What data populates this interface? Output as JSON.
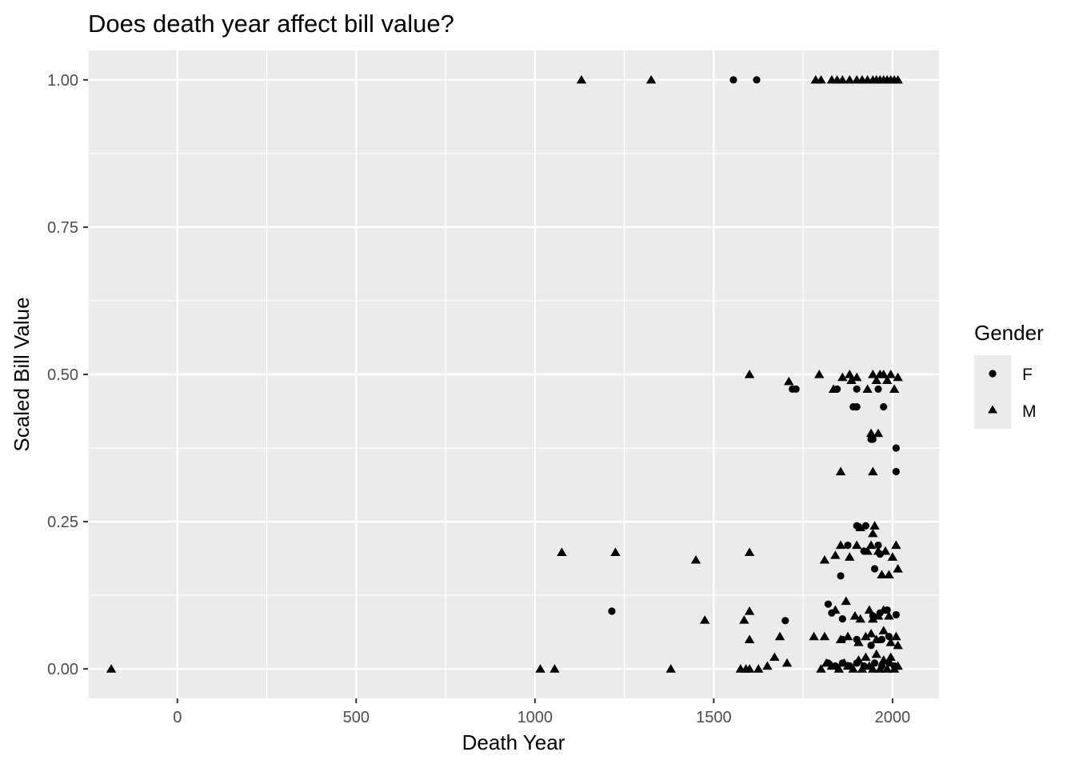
{
  "chart_data": {
    "type": "scatter",
    "title": "Does death year affect bill value?",
    "xlabel": "Death Year",
    "ylabel": "Scaled Bill Value",
    "xlim": [
      -250,
      2130
    ],
    "ylim": [
      -0.05,
      1.05
    ],
    "x_ticks": [
      0,
      500,
      1000,
      1500,
      2000
    ],
    "x_tick_labels": [
      "0",
      "500",
      "1000",
      "1500",
      "2000"
    ],
    "y_ticks": [
      0,
      0.25,
      0.5,
      0.75,
      1.0
    ],
    "y_tick_labels": [
      "0.00",
      "0.25",
      "0.50",
      "0.75",
      "1.00"
    ],
    "grid": true,
    "legend": {
      "title": "Gender",
      "position": "right"
    },
    "series": [
      {
        "name": "F",
        "shape": "circle",
        "points": [
          [
            1555,
            1.0
          ],
          [
            1620,
            1.0
          ],
          [
            1720,
            0.475
          ],
          [
            1730,
            0.475
          ],
          [
            1845,
            0.475
          ],
          [
            1900,
            0.475
          ],
          [
            1960,
            0.475
          ],
          [
            1890,
            0.445
          ],
          [
            1900,
            0.445
          ],
          [
            1975,
            0.445
          ],
          [
            1940,
            0.39
          ],
          [
            1945,
            0.39
          ],
          [
            2010,
            0.375
          ],
          [
            2010,
            0.335
          ],
          [
            1900,
            0.243
          ],
          [
            1925,
            0.243
          ],
          [
            1875,
            0.21
          ],
          [
            1920,
            0.2
          ],
          [
            1960,
            0.21
          ],
          [
            1965,
            0.195
          ],
          [
            1855,
            0.158
          ],
          [
            1950,
            0.17
          ],
          [
            1215,
            0.098
          ],
          [
            1700,
            0.082
          ],
          [
            1820,
            0.11
          ],
          [
            1830,
            0.095
          ],
          [
            1860,
            0.085
          ],
          [
            1945,
            0.09
          ],
          [
            1965,
            0.095
          ],
          [
            1985,
            0.1
          ],
          [
            2010,
            0.092
          ],
          [
            1860,
            0.05
          ],
          [
            1900,
            0.05
          ],
          [
            1940,
            0.04
          ],
          [
            1970,
            0.05
          ],
          [
            1990,
            0.055
          ],
          [
            1820,
            0.01
          ],
          [
            1840,
            0.005
          ],
          [
            1860,
            0.01
          ],
          [
            1880,
            0.005
          ],
          [
            1900,
            0.01
          ],
          [
            1920,
            0.005
          ],
          [
            1950,
            0.01
          ],
          [
            1970,
            0.005
          ],
          [
            1990,
            0.01
          ],
          [
            2005,
            0.005
          ]
        ]
      },
      {
        "name": "M",
        "shape": "triangle",
        "points": [
          [
            -185,
            0.0
          ],
          [
            1015,
            0.0
          ],
          [
            1055,
            0.0
          ],
          [
            1380,
            0.0
          ],
          [
            1575,
            0.0
          ],
          [
            1590,
            0.0
          ],
          [
            1600,
            0.0
          ],
          [
            1625,
            0.0
          ],
          [
            1650,
            0.005
          ],
          [
            1670,
            0.02
          ],
          [
            1705,
            0.01
          ],
          [
            1130,
            1.0
          ],
          [
            1325,
            1.0
          ],
          [
            1785,
            1.0
          ],
          [
            1800,
            1.0
          ],
          [
            1830,
            1.0
          ],
          [
            1845,
            1.0
          ],
          [
            1860,
            1.0
          ],
          [
            1880,
            1.0
          ],
          [
            1900,
            1.0
          ],
          [
            1915,
            1.0
          ],
          [
            1930,
            1.0
          ],
          [
            1945,
            1.0
          ],
          [
            1955,
            1.0
          ],
          [
            1965,
            1.0
          ],
          [
            1975,
            1.0
          ],
          [
            1985,
            1.0
          ],
          [
            1995,
            1.0
          ],
          [
            2005,
            1.0
          ],
          [
            2015,
            1.0
          ],
          [
            1600,
            0.5
          ],
          [
            1710,
            0.488
          ],
          [
            1795,
            0.5
          ],
          [
            1835,
            0.475
          ],
          [
            1860,
            0.495
          ],
          [
            1880,
            0.5
          ],
          [
            1885,
            0.49
          ],
          [
            1900,
            0.495
          ],
          [
            1930,
            0.475
          ],
          [
            1945,
            0.5
          ],
          [
            1955,
            0.49
          ],
          [
            1965,
            0.5
          ],
          [
            1975,
            0.5
          ],
          [
            1985,
            0.49
          ],
          [
            1995,
            0.5
          ],
          [
            2005,
            0.475
          ],
          [
            2015,
            0.495
          ],
          [
            1940,
            0.4
          ],
          [
            1960,
            0.4
          ],
          [
            1945,
            0.335
          ],
          [
            1855,
            0.335
          ],
          [
            1075,
            0.198
          ],
          [
            1225,
            0.198
          ],
          [
            1450,
            0.185
          ],
          [
            1600,
            0.198
          ],
          [
            1810,
            0.185
          ],
          [
            1840,
            0.193
          ],
          [
            1855,
            0.21
          ],
          [
            1880,
            0.19
          ],
          [
            1900,
            0.21
          ],
          [
            1910,
            0.24
          ],
          [
            1930,
            0.2
          ],
          [
            1940,
            0.21
          ],
          [
            1950,
            0.243
          ],
          [
            1960,
            0.2
          ],
          [
            1970,
            0.16
          ],
          [
            1980,
            0.2
          ],
          [
            1990,
            0.16
          ],
          [
            2000,
            0.19
          ],
          [
            2010,
            0.21
          ],
          [
            2015,
            0.17
          ],
          [
            1945,
            0.23
          ],
          [
            1475,
            0.083
          ],
          [
            1585,
            0.083
          ],
          [
            1600,
            0.098
          ],
          [
            1600,
            0.05
          ],
          [
            1685,
            0.055
          ],
          [
            1780,
            0.055
          ],
          [
            1810,
            0.055
          ],
          [
            1840,
            0.1
          ],
          [
            1870,
            0.115
          ],
          [
            1895,
            0.09
          ],
          [
            1910,
            0.085
          ],
          [
            1935,
            0.1
          ],
          [
            1945,
            0.085
          ],
          [
            1960,
            0.09
          ],
          [
            1975,
            0.1
          ],
          [
            1990,
            0.09
          ],
          [
            2010,
            0.055
          ],
          [
            1855,
            0.05
          ],
          [
            1875,
            0.055
          ],
          [
            1905,
            0.045
          ],
          [
            1925,
            0.055
          ],
          [
            1940,
            0.06
          ],
          [
            1955,
            0.05
          ],
          [
            1975,
            0.065
          ],
          [
            1995,
            0.045
          ],
          [
            2015,
            0.04
          ],
          [
            1800,
            0.0
          ],
          [
            1815,
            0.01
          ],
          [
            1830,
            0.005
          ],
          [
            1850,
            0.0
          ],
          [
            1865,
            0.01
          ],
          [
            1875,
            0.005
          ],
          [
            1890,
            0.0
          ],
          [
            1905,
            0.015
          ],
          [
            1915,
            0.0
          ],
          [
            1925,
            0.02
          ],
          [
            1935,
            0.005
          ],
          [
            1945,
            0.0
          ],
          [
            1955,
            0.025
          ],
          [
            1965,
            0.0
          ],
          [
            1975,
            0.015
          ],
          [
            1985,
            0.0
          ],
          [
            1995,
            0.02
          ],
          [
            2005,
            0.0
          ],
          [
            2015,
            0.005
          ]
        ]
      }
    ]
  }
}
